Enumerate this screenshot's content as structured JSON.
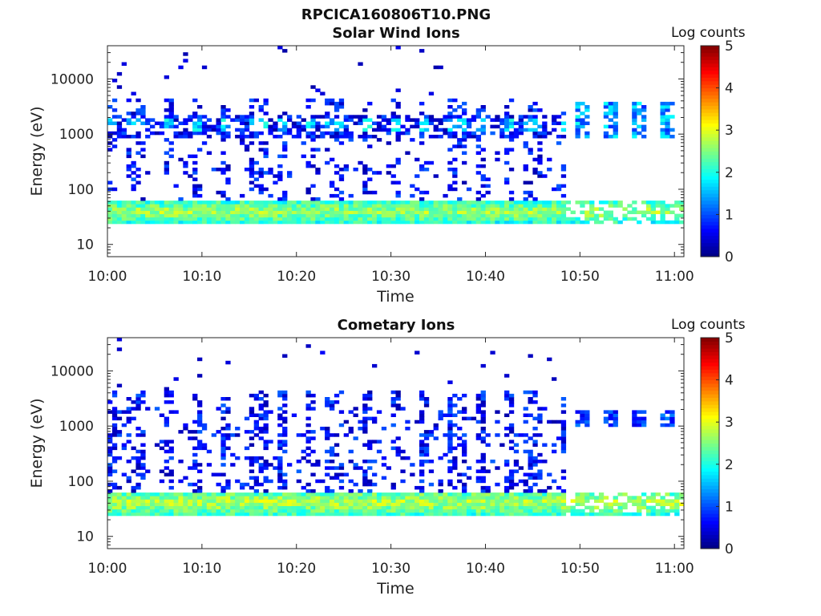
{
  "figure": {
    "file_title": "RPCICA160806T10.PNG"
  },
  "chart_data": [
    {
      "type": "heatmap",
      "title": "Solar Wind Ions",
      "xlabel": "Time",
      "ylabel": "Energy (eV)",
      "yscale": "log",
      "ylim": [
        6,
        40000
      ],
      "xlim": [
        "10:00",
        "11:01"
      ],
      "x_ticks": [
        "10:00",
        "10:10",
        "10:20",
        "10:30",
        "10:40",
        "10:50",
        "11:00"
      ],
      "y_ticks": [
        "10",
        "100",
        "1000",
        "10000"
      ],
      "colorbar": {
        "label": "Log counts",
        "min": 0,
        "max": 5,
        "ticks": [
          "0",
          "1",
          "2",
          "3",
          "4",
          "5"
        ],
        "colormap": "jet"
      },
      "features": [
        {
          "description": "persistent low-energy band",
          "energy_eV": [
            25,
            55
          ],
          "time": [
            "10:00",
            "11:00"
          ],
          "log_counts": 2.5
        },
        {
          "description": "solar wind peak",
          "energy_eV": [
            900,
            2000
          ],
          "time": [
            "10:01",
            "11:00"
          ],
          "log_counts": 1.8
        },
        {
          "description": "intermittent spikes",
          "times": [
            "10:50",
            "10:53",
            "10:56",
            "10:59"
          ],
          "energy_eV": [
            800,
            3500
          ],
          "log_counts": 1.5
        }
      ]
    },
    {
      "type": "heatmap",
      "title": "Cometary Ions",
      "xlabel": "Time",
      "ylabel": "Energy (eV)",
      "yscale": "log",
      "ylim": [
        6,
        40000
      ],
      "xlim": [
        "10:00",
        "11:01"
      ],
      "x_ticks": [
        "10:00",
        "10:10",
        "10:20",
        "10:30",
        "10:40",
        "10:50",
        "11:00"
      ],
      "y_ticks": [
        "10",
        "100",
        "1000",
        "10000"
      ],
      "colorbar": {
        "label": "Log counts",
        "min": 0,
        "max": 5,
        "ticks": [
          "0",
          "1",
          "2",
          "3",
          "4",
          "5"
        ],
        "colormap": "jet"
      },
      "features": [
        {
          "description": "persistent low-energy band",
          "energy_eV": [
            25,
            60
          ],
          "time": [
            "10:00",
            "11:00"
          ],
          "log_counts": 2.6
        },
        {
          "description": "broadband bursts",
          "energy_eV": [
            60,
            4000
          ],
          "time": [
            "10:01",
            "10:45"
          ],
          "log_counts": 1.0
        },
        {
          "description": "intermittent spikes",
          "times": [
            "10:50",
            "10:53",
            "10:56",
            "10:59"
          ],
          "energy_eV": [
            900,
            1800
          ],
          "log_counts": 1.0
        }
      ]
    }
  ]
}
